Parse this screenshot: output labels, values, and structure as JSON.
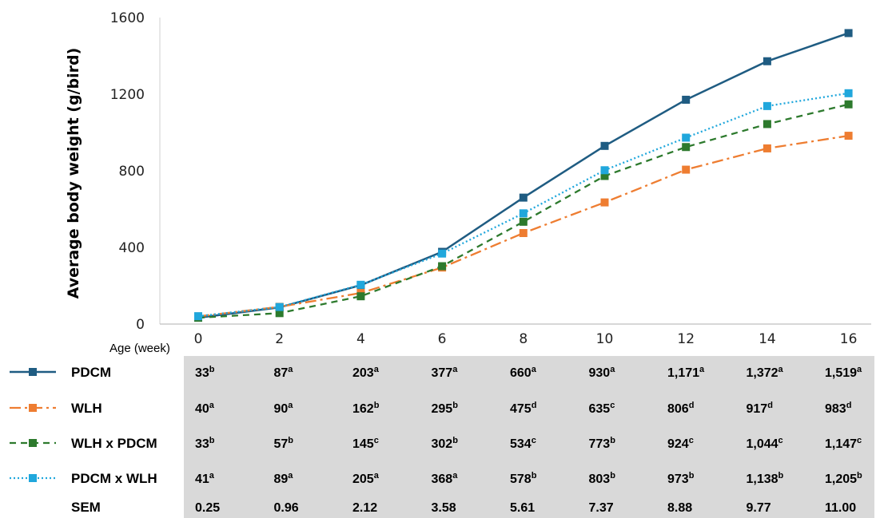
{
  "chart_data": {
    "type": "line",
    "xlabel": "Age (week)",
    "ylabel": "Average body weight (g/bird)",
    "x": [
      0,
      2,
      4,
      6,
      8,
      10,
      12,
      14,
      16
    ],
    "ylim": [
      0,
      1600
    ],
    "yticks": [
      0,
      400,
      800,
      1200,
      1600
    ],
    "grid": false,
    "legend": "table-rows-bottom-left",
    "series": [
      {
        "name": "PDCM",
        "color": "#1f5c82",
        "dash": "solid",
        "values": [
          33,
          87,
          203,
          377,
          660,
          930,
          1171,
          1372,
          1519
        ],
        "labels": [
          "33",
          "87",
          "203",
          "377",
          "660",
          "930",
          "1,171",
          "1,372",
          "1,519"
        ],
        "sups": [
          "b",
          "a",
          "a",
          "a",
          "a",
          "a",
          "a",
          "a",
          "a"
        ]
      },
      {
        "name": "WLH",
        "color": "#ee7d31",
        "dash": "dashdot",
        "values": [
          40,
          90,
          162,
          295,
          475,
          635,
          806,
          917,
          983
        ],
        "labels": [
          "40",
          "90",
          "162",
          "295",
          "475",
          "635",
          "806",
          "917",
          "983"
        ],
        "sups": [
          "a",
          "a",
          "b",
          "b",
          "d",
          "c",
          "d",
          "d",
          "d"
        ]
      },
      {
        "name": "WLH x PDCM",
        "color": "#2d7a2d",
        "dash": "dash",
        "values": [
          33,
          57,
          145,
          302,
          534,
          773,
          924,
          1044,
          1147
        ],
        "labels": [
          "33",
          "57",
          "145",
          "302",
          "534",
          "773",
          "924",
          "1,044",
          "1,147"
        ],
        "sups": [
          "b",
          "b",
          "c",
          "b",
          "c",
          "b",
          "c",
          "c",
          "c"
        ]
      },
      {
        "name": "PDCM x WLH",
        "color": "#20a7dc",
        "dash": "dot",
        "values": [
          41,
          89,
          205,
          368,
          578,
          803,
          973,
          1138,
          1205
        ],
        "labels": [
          "41",
          "89",
          "205",
          "368",
          "578",
          "803",
          "973",
          "1,138",
          "1,205"
        ],
        "sups": [
          "a",
          "a",
          "a",
          "a",
          "b",
          "b",
          "b",
          "b",
          "b"
        ]
      }
    ],
    "sem": {
      "label": "SEM",
      "values": [
        "0.25",
        "0.96",
        "2.12",
        "3.58",
        "5.61",
        "7.37",
        "8.88",
        "9.77",
        "11.00"
      ]
    },
    "table_background": "#d9d9d9"
  }
}
